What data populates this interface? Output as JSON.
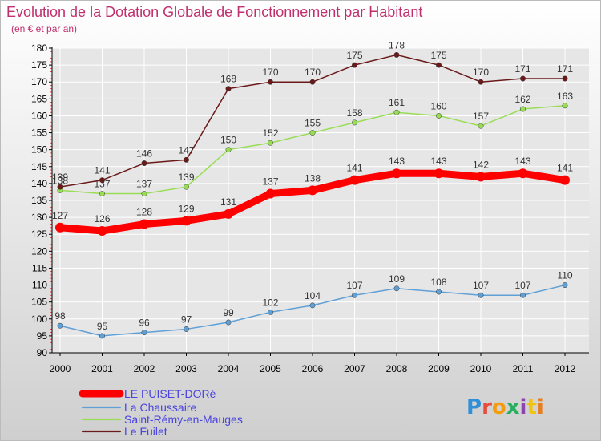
{
  "chart_data": {
    "type": "line",
    "title": "Evolution de la Dotation Globale de Fonctionnement par Habitant",
    "subtitle": "(en € et par an)",
    "x": [
      "2000",
      "2001",
      "2002",
      "2003",
      "2004",
      "2005",
      "2006",
      "2007",
      "2008",
      "2009",
      "2010",
      "2011",
      "2012"
    ],
    "ylim": [
      90,
      180
    ],
    "yticks": [
      90,
      95,
      100,
      105,
      110,
      115,
      120,
      125,
      130,
      135,
      140,
      145,
      150,
      155,
      160,
      165,
      170,
      175,
      180
    ],
    "grid": true,
    "legend_position": "bottom-left",
    "series": [
      {
        "name": "LE PUISET-DORé",
        "color": "#ff0000",
        "emphasis": true,
        "values": [
          127,
          126,
          128,
          129,
          131,
          137,
          138,
          141,
          143,
          143,
          142,
          143,
          141
        ]
      },
      {
        "name": "La Chaussaire",
        "color": "#5fa0d6",
        "values": [
          98,
          95,
          96,
          97,
          99,
          102,
          104,
          107,
          109,
          108,
          107,
          107,
          110
        ]
      },
      {
        "name": "Saint-Rémy-en-Mauges",
        "color": "#99dd55",
        "values": [
          138,
          137,
          137,
          139,
          150,
          152,
          155,
          158,
          161,
          160,
          157,
          162,
          163
        ]
      },
      {
        "name": "Le Fuilet",
        "color": "#6b1a1a",
        "values": [
          139,
          141,
          146,
          147,
          168,
          170,
          170,
          175,
          178,
          175,
          170,
          171,
          171
        ]
      }
    ]
  },
  "labels": {
    "title": "Evolution de la Dotation Globale de Fonctionnement par Habitant",
    "subtitle": "(en € et par an)",
    "logo": "Proxiti"
  },
  "colors": {
    "title": "#c0306e",
    "axis": "#000000",
    "grid": "#ffffff",
    "legend_text": "#4a44e0"
  }
}
